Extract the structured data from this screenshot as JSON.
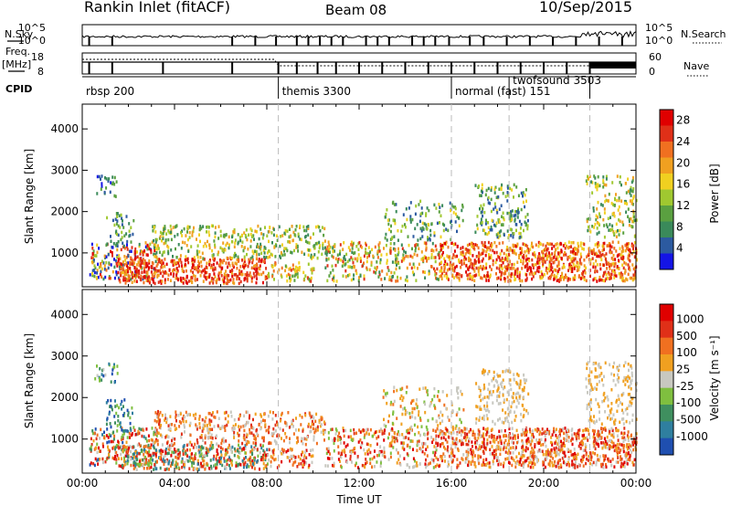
{
  "header": {
    "station": "Rankin Inlet (fitACF)",
    "beam": "Beam 08",
    "date": "10/Sep/2015"
  },
  "strips": {
    "nsky_label": "N.Sky",
    "nsky_ticks": [
      "10^5",
      "10^0"
    ],
    "nsearch_label": "N.Search",
    "freq_label_1": "Freq.",
    "freq_label_2": "[MHz]",
    "freq_ticks": [
      "18",
      "8"
    ],
    "nave_ticks": [
      "60",
      "0"
    ],
    "nave_label": "Nave",
    "cpid_label": "CPID"
  },
  "cpid_segments": [
    {
      "start_hour": 0.0,
      "label": "rbsp 200"
    },
    {
      "start_hour": 8.5,
      "label": "themis 3300"
    },
    {
      "start_hour": 16.0,
      "label": "normal (fast) 151"
    },
    {
      "start_hour": 18.5,
      "label": "twofsound 3503"
    },
    {
      "start_hour": 22.0,
      "label": ""
    }
  ],
  "chart_data": [
    {
      "type": "heatmap",
      "panel": "power",
      "ylabel": "Slant Range [km]",
      "x_range_hours": [
        0,
        24
      ],
      "ylim": [
        180,
        4600
      ],
      "y_ticks": [
        "1000",
        "2000",
        "3000",
        "4000"
      ],
      "colorbar": {
        "label": "Power [dB]",
        "ticks": [
          "4",
          "8",
          "12",
          "16",
          "20",
          "24",
          "28"
        ],
        "range": [
          0,
          30
        ]
      }
    },
    {
      "type": "heatmap",
      "panel": "velocity",
      "ylabel": "Slant Range [km]",
      "xlabel": "Time UT",
      "x_range_hours": [
        0,
        24
      ],
      "ylim": [
        180,
        4600
      ],
      "x_ticks": [
        "00:00",
        "04:00",
        "08:00",
        "12:00",
        "16:00",
        "20:00",
        "00:00"
      ],
      "y_ticks": [
        "1000",
        "2000",
        "3000",
        "4000"
      ],
      "colorbar": {
        "label": "Velocity [m s⁻¹]",
        "ticks": [
          "1000",
          "500",
          "100",
          "25",
          "-25",
          "-100",
          "-500",
          "-1000"
        ]
      }
    }
  ],
  "colors": {
    "power_scale": [
      "#1414e6",
      "#2c5aa0",
      "#3a8a5a",
      "#5aa040",
      "#a0c830",
      "#f0d020",
      "#f0a020",
      "#f07020",
      "#e03018",
      "#e00000"
    ],
    "velocity_scale": [
      "#1f4fb0",
      "#2f7f9f",
      "#3f8f5f",
      "#7fbf3f",
      "#c8c8c0",
      "#f0a020",
      "#f07020",
      "#e03018",
      "#e00000"
    ]
  }
}
